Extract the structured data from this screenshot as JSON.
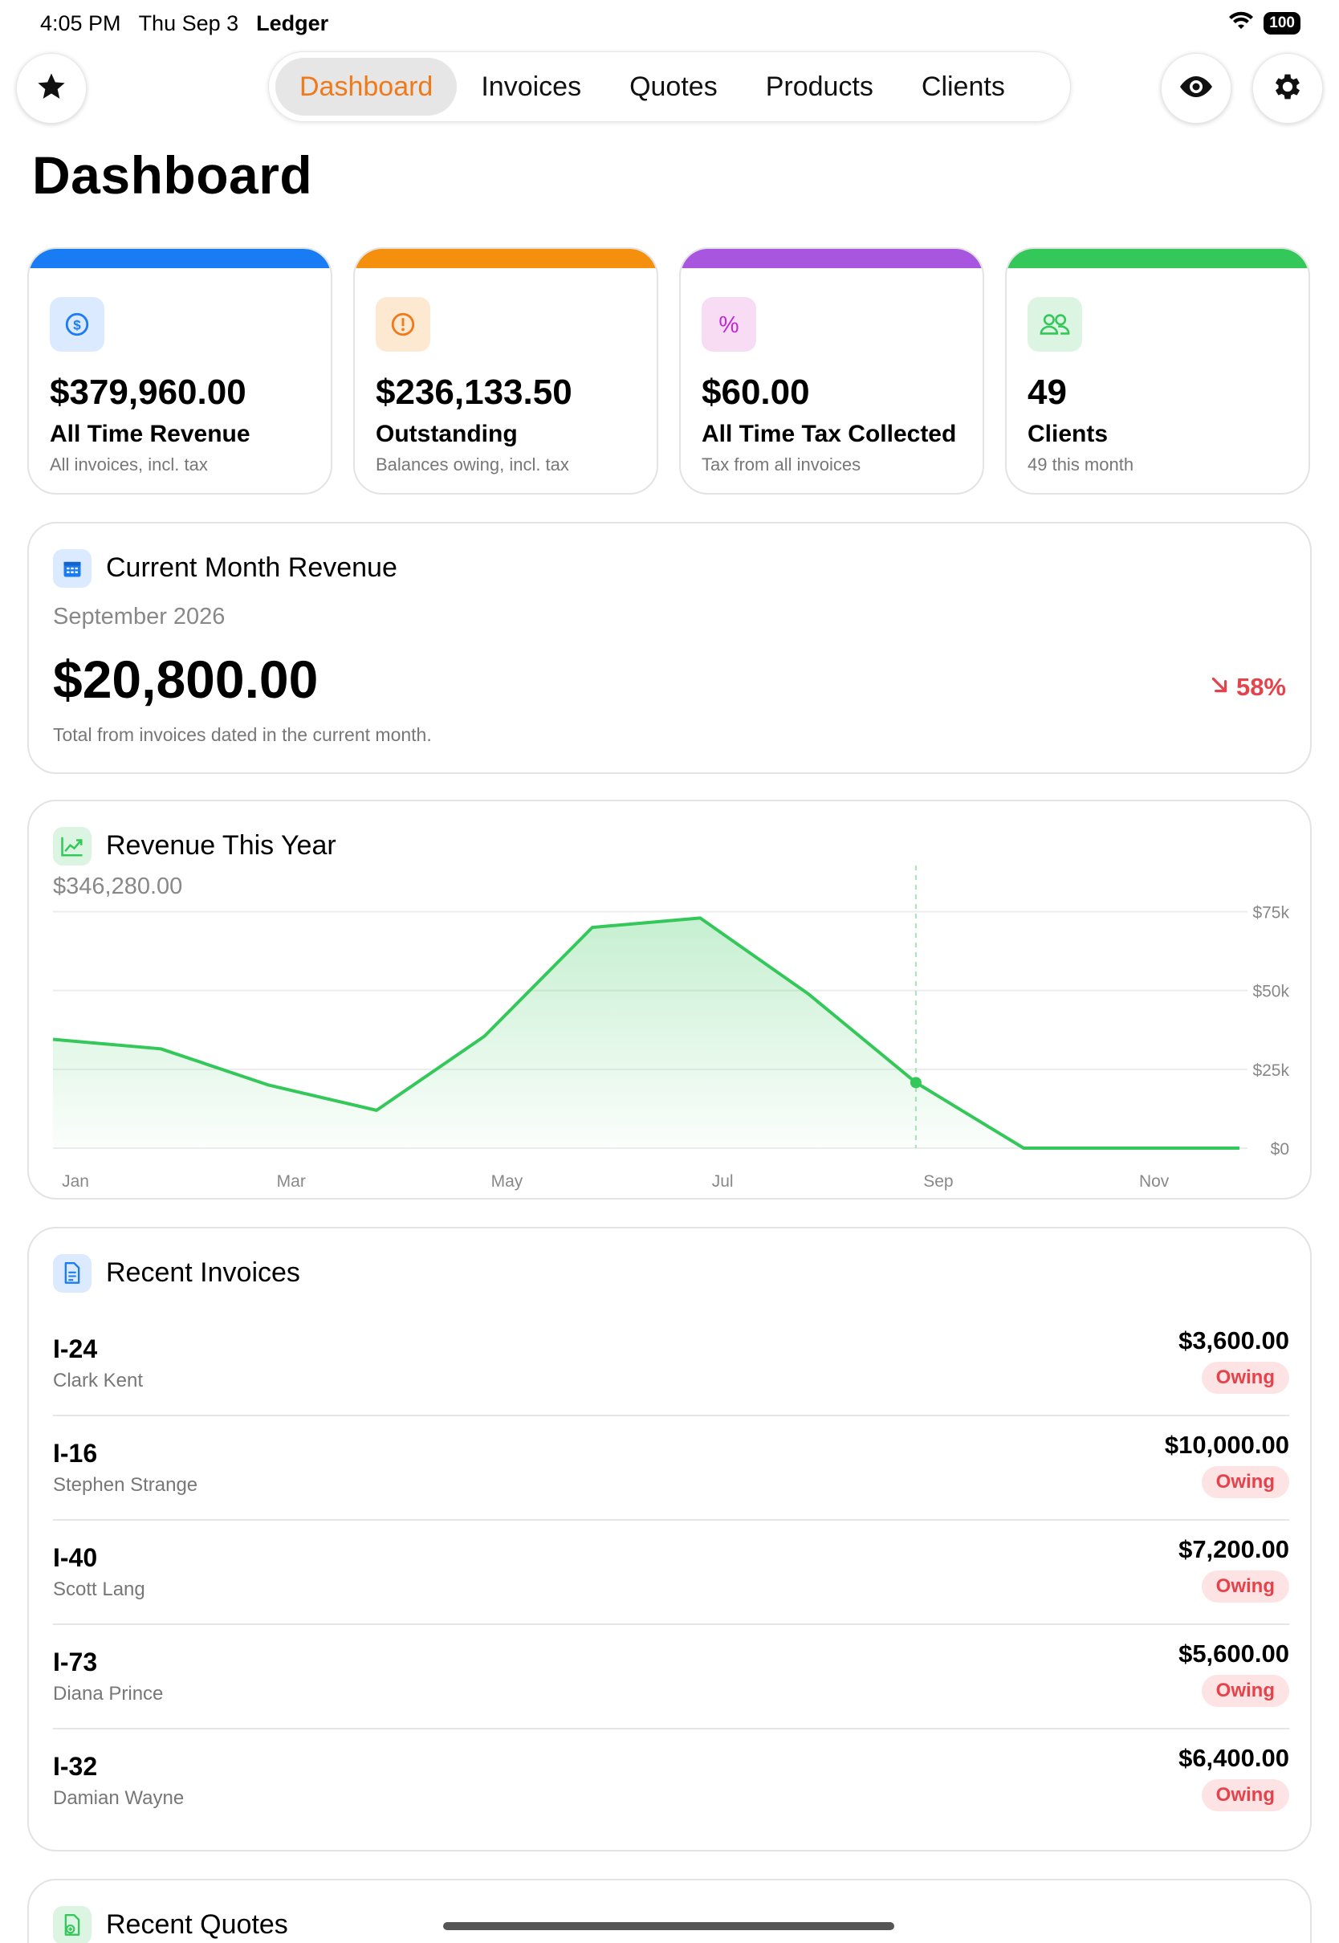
{
  "status_bar": {
    "time": "4:05 PM",
    "date": "Thu Sep 3",
    "app_name": "Ledger",
    "battery": "100"
  },
  "nav": {
    "tabs": [
      {
        "label": "Dashboard",
        "active": true
      },
      {
        "label": "Invoices",
        "active": false
      },
      {
        "label": "Quotes",
        "active": false
      },
      {
        "label": "Products",
        "active": false
      },
      {
        "label": "Clients",
        "active": false
      }
    ],
    "left_button_icon": "star-icon",
    "right_buttons": [
      "eye-icon",
      "gear-icon"
    ],
    "accent_color": "#f07a1a"
  },
  "page_title": "Dashboard",
  "stats": [
    {
      "value": "$379,960.00",
      "label": "All Time Revenue",
      "sub": "All invoices, incl. tax",
      "icon": "dollar-circle-icon",
      "color": "#1a7cf5"
    },
    {
      "value": "$236,133.50",
      "label": "Outstanding",
      "sub": "Balances owing, incl. tax",
      "icon": "exclamation-circle-icon",
      "color": "#f5900f"
    },
    {
      "value": "$60.00",
      "label": "All Time Tax Collected",
      "sub": "Tax from all invoices",
      "icon": "percent-icon",
      "color": "#a855e0"
    },
    {
      "value": "49",
      "label": "Clients",
      "sub": "49 this month",
      "icon": "people-icon",
      "color": "#34c759"
    }
  ],
  "current_month": {
    "title": "Current Month Revenue",
    "month": "September 2026",
    "amount": "$20,800.00",
    "change": "58%",
    "change_direction": "down",
    "note": "Total from invoices dated in the current month."
  },
  "revenue_year": {
    "title": "Revenue This Year",
    "total": "$346,280.00"
  },
  "chart_data": {
    "type": "area",
    "x": [
      "Jan",
      "Feb",
      "Mar",
      "Apr",
      "May",
      "Jun",
      "Jul",
      "Aug",
      "Sep",
      "Oct",
      "Nov",
      "Dec"
    ],
    "x_tick_labels": [
      "Jan",
      "Mar",
      "May",
      "Jul",
      "Sep",
      "Nov"
    ],
    "values": [
      34500,
      31500,
      20000,
      12000,
      35500,
      70000,
      73000,
      49000,
      20800,
      0,
      0,
      0
    ],
    "y_tick_labels": [
      "$75k",
      "$50k",
      "$25k",
      "$0"
    ],
    "y_ticks": [
      75000,
      50000,
      25000,
      0
    ],
    "ylim": [
      0,
      82000
    ],
    "highlight_index": 8,
    "grid": true,
    "line_color": "#34c759"
  },
  "recent_invoices": {
    "title": "Recent Invoices",
    "items": [
      {
        "number": "I-24",
        "client": "Clark Kent",
        "amount": "$3,600.00",
        "status": "Owing"
      },
      {
        "number": "I-16",
        "client": "Stephen Strange",
        "amount": "$10,000.00",
        "status": "Owing"
      },
      {
        "number": "I-40",
        "client": "Scott Lang",
        "amount": "$7,200.00",
        "status": "Owing"
      },
      {
        "number": "I-73",
        "client": "Diana Prince",
        "amount": "$5,600.00",
        "status": "Owing"
      },
      {
        "number": "I-32",
        "client": "Damian Wayne",
        "amount": "$6,400.00",
        "status": "Owing"
      }
    ]
  },
  "recent_quotes": {
    "title": "Recent Quotes"
  }
}
